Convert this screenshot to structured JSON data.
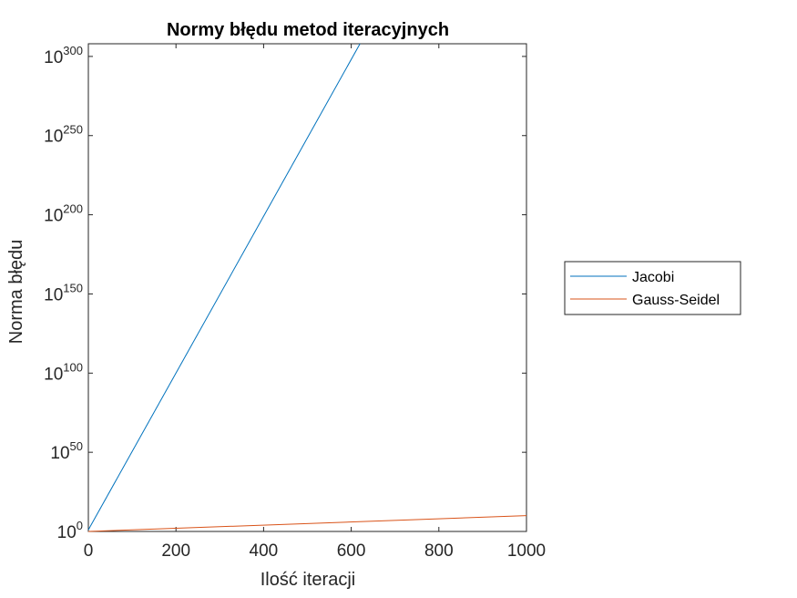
{
  "chart_data": {
    "type": "line",
    "title": "Normy błędu metod iteracyjnych",
    "xlabel": "Ilość iteracji",
    "ylabel": "Norma błędu",
    "xlim": [
      0,
      1000
    ],
    "ylim_log10": [
      0,
      308
    ],
    "y_scale": "log",
    "grid": false,
    "legend_position": "outside-right",
    "x_ticks": [
      {
        "value": 0,
        "label": "0"
      },
      {
        "value": 200,
        "label": "200"
      },
      {
        "value": 400,
        "label": "400"
      },
      {
        "value": 600,
        "label": "600"
      },
      {
        "value": 800,
        "label": "800"
      },
      {
        "value": 1000,
        "label": "1000"
      }
    ],
    "y_ticks": [
      {
        "exp": 0,
        "base": "10",
        "sup": "0"
      },
      {
        "exp": 50,
        "base": "10",
        "sup": "50"
      },
      {
        "exp": 100,
        "base": "10",
        "sup": "100"
      },
      {
        "exp": 150,
        "base": "10",
        "sup": "150"
      },
      {
        "exp": 200,
        "base": "10",
        "sup": "200"
      },
      {
        "exp": 250,
        "base": "10",
        "sup": "250"
      },
      {
        "exp": 300,
        "base": "10",
        "sup": "300"
      }
    ],
    "series": [
      {
        "name": "Jacobi",
        "color": "#0072BD",
        "x": [
          0,
          620
        ],
        "log10_y": [
          1,
          308
        ]
      },
      {
        "name": "Gauss-Seidel",
        "color": "#D95319",
        "x": [
          0,
          1000
        ],
        "log10_y": [
          0,
          10
        ]
      }
    ]
  }
}
